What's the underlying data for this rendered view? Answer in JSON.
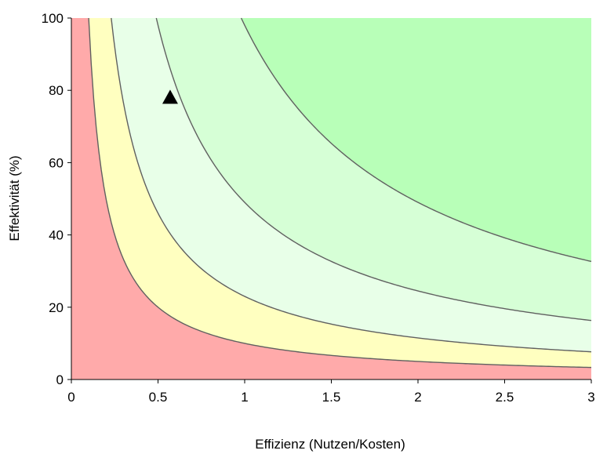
{
  "chart_data": {
    "type": "area",
    "title": "",
    "xlabel": "Effizienz (Nutzen/Kosten)",
    "ylabel": "Effektivität (%)",
    "xlim": [
      0,
      3
    ],
    "ylim": [
      0,
      100
    ],
    "x_ticks": [
      0,
      0.5,
      1,
      1.5,
      2,
      2.5,
      3
    ],
    "x_tick_labels": [
      "0",
      "0.5",
      "1",
      "1.5",
      "2",
      "2.5",
      "3"
    ],
    "y_ticks": [
      0,
      20,
      40,
      60,
      80,
      100
    ],
    "y_tick_labels": [
      "0",
      "20",
      "40",
      "60",
      "80",
      "100"
    ],
    "grid": false,
    "regions": [
      {
        "color": "#FFAAAA"
      },
      {
        "color": "#FFFFC0"
      },
      {
        "color": "#E8FFE8"
      },
      {
        "color": "#D6FFD6"
      },
      {
        "color": "#B8FFB8"
      }
    ],
    "contour_products": [
      10,
      23,
      49,
      98
    ],
    "marker": {
      "shape": "triangle",
      "x": 0.57,
      "y": 78,
      "color": "#000000"
    }
  }
}
